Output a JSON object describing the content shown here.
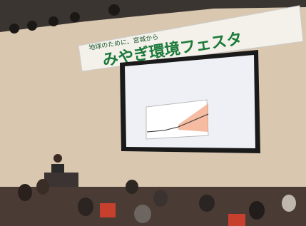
{
  "banner": {
    "tagline": "地球のために、宮城から",
    "title": "みやぎ環境フェスタ"
  }
}
